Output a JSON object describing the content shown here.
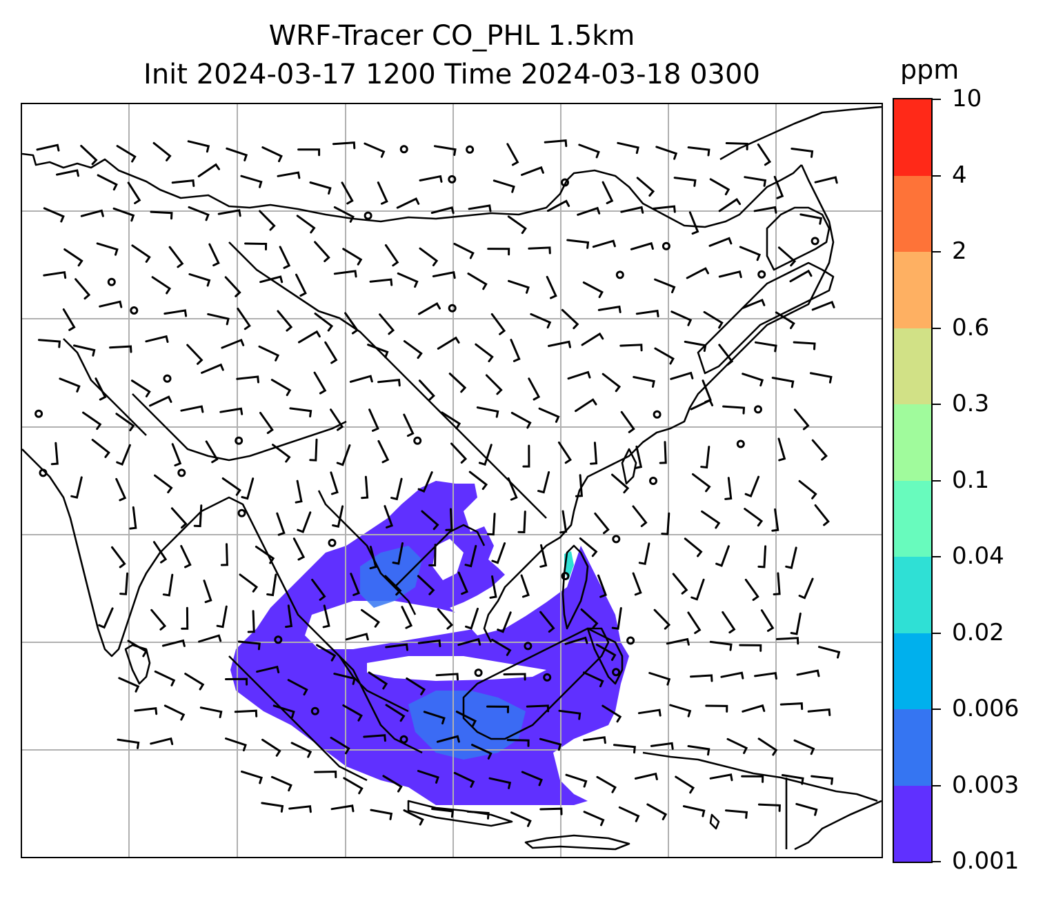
{
  "title": {
    "line1": "WRF-Tracer CO_PHL 1.5km",
    "line2": "Init 2024-03-17 1200 Time 2024-03-18 0300"
  },
  "colorbar": {
    "unit": "ppm",
    "labels": [
      "0.001",
      "0.003",
      "0.006",
      "0.02",
      "0.04",
      "0.1",
      "0.3",
      "0.6",
      "2",
      "4",
      "10"
    ],
    "colors": [
      "#6030ff",
      "#3575f2",
      "#00b0ed",
      "#2fe0d5",
      "#68fbbd",
      "#a0fb9c",
      "#d1e186",
      "#feb062",
      "#fe7338",
      "#ff2918"
    ]
  },
  "map": {
    "gridlines": "on",
    "tracer_colors": {
      "low": "#6030ff",
      "mid": "#3575f2",
      "high": "#2fe0d5"
    },
    "line_color": "#000000",
    "grid_color": "#b0b0b0"
  }
}
